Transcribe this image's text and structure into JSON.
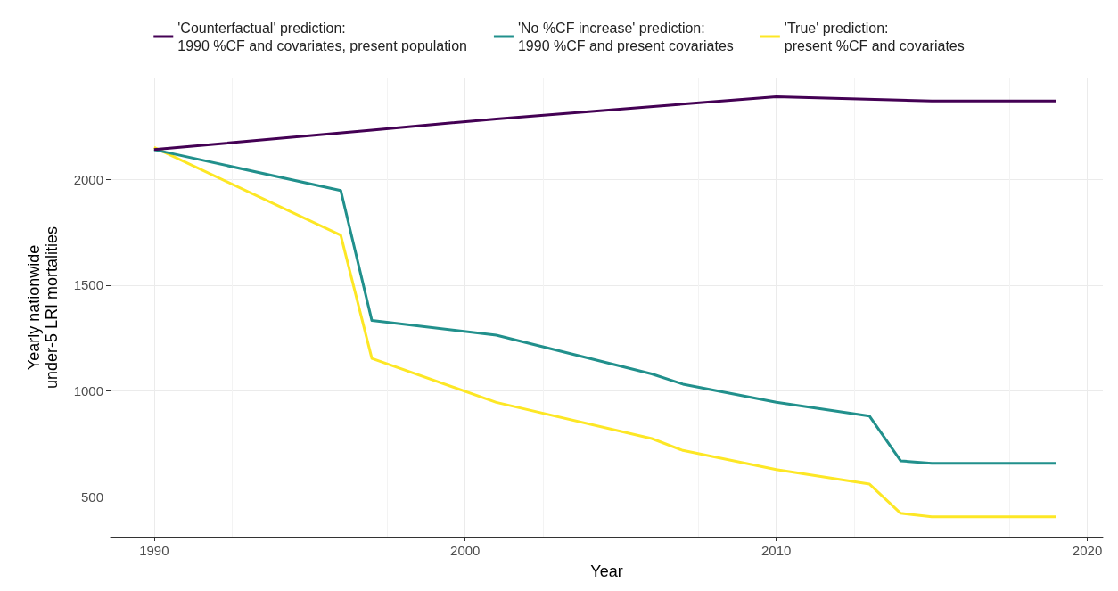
{
  "chart_data": {
    "type": "line",
    "xlabel": "Year",
    "ylabel": "Yearly nationwide\nunder-5 LRI mortalities",
    "xlim": [
      1988.6,
      2020.5
    ],
    "xticks": [
      1990,
      2000,
      2010,
      2020
    ],
    "ylim": [
      313,
      2476
    ],
    "yticks": [
      500,
      1000,
      1500,
      2000
    ],
    "grid": true,
    "legend": "top",
    "line_style": "solid",
    "marker": "none",
    "series": [
      {
        "name": "'Counterfactual' prediction:\n1990 %CF and covariates, present population",
        "color": "#440154",
        "x": [
          1990,
          1997,
          2001,
          2010,
          2015,
          2019
        ],
        "values": [
          2140,
          2232,
          2285,
          2390,
          2370,
          2370
        ]
      },
      {
        "name": "'No %CF increase' prediction:\n1990 %CF and present covariates",
        "color": "#21908c",
        "x": [
          1990,
          1996,
          1997,
          2001,
          2006,
          2007,
          2010,
          2013,
          2014,
          2015,
          2019
        ],
        "values": [
          2140,
          1947,
          1333,
          1264,
          1081,
          1033,
          947,
          882,
          671,
          659,
          659
        ]
      },
      {
        "name": "'True' prediction:\npresent %CF and covariates",
        "color": "#fde725",
        "x": [
          1990,
          1996,
          1997,
          2001,
          2006,
          2007,
          2010,
          2013,
          2014,
          2015,
          2019
        ],
        "values": [
          2150,
          1736,
          1154,
          947,
          776,
          720,
          630,
          561,
          423,
          407,
          407
        ]
      }
    ]
  }
}
